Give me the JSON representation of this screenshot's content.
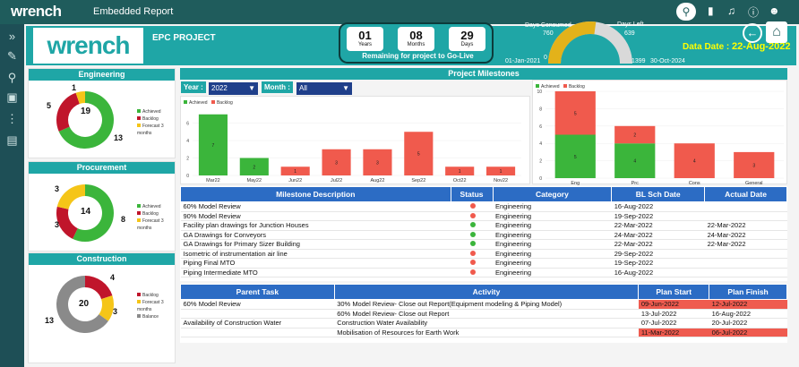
{
  "topbar": {
    "brand": "wrench",
    "title": "Embedded Report"
  },
  "header": {
    "logo": "wrench",
    "project_title": "EPC PROJECT",
    "counters": [
      {
        "value": "01",
        "unit": "Years"
      },
      {
        "value": "08",
        "unit": "Months"
      },
      {
        "value": "29",
        "unit": "Days"
      }
    ],
    "counter_caption": "Remaining for project to Go-Live",
    "gauge": {
      "consumed_label": "Days Consumed",
      "consumed_value": "760",
      "left_label": "Days Left",
      "left_value": "639",
      "min": "0",
      "max": "1399",
      "start_date": "01-Jan-2021",
      "end_date": "30-Oct-2024",
      "fraction_consumed": 0.543
    },
    "date_label": "Data Date :",
    "date_value": "22-Aug-2022"
  },
  "colors": {
    "teal": "#1fa6a6",
    "green": "#3bb53b",
    "red": "#f05a4d",
    "yellow": "#f5c518",
    "darkred": "#c0152b",
    "grey": "#8a8a8a"
  },
  "engineering": {
    "title": "Engineering",
    "total": "19",
    "labels": [
      "1",
      "5",
      "13"
    ],
    "legend": [
      "Achieved",
      "Backlog",
      "Forecast 3 months"
    ],
    "values": [
      13,
      5,
      1
    ]
  },
  "procurement": {
    "title": "Procurement",
    "total": "14",
    "labels": [
      "3",
      "3",
      "8"
    ],
    "legend": [
      "Achieved",
      "Backlog",
      "Forecast 3 months"
    ],
    "values": [
      8,
      3,
      3
    ]
  },
  "construction": {
    "title": "Construction",
    "total": "20",
    "labels": [
      "4",
      "3",
      "13"
    ],
    "legend": [
      "Backlog",
      "Forecast 3 months",
      "Balance"
    ],
    "values": [
      4,
      3,
      13
    ]
  },
  "milestones": {
    "title": "Project Milestones",
    "year_label": "Year :",
    "year_value": "2022",
    "month_label": "Month :",
    "month_value": "All",
    "legend": [
      "Achieved",
      "Backlog"
    ]
  },
  "chart_data": [
    {
      "type": "bar",
      "stacked": true,
      "categories": [
        "Mar22",
        "May22",
        "Jun22",
        "Jul22",
        "Aug22",
        "Sep22",
        "Oct22",
        "Nov22"
      ],
      "series": [
        {
          "name": "Achieved",
          "values": [
            7,
            2,
            0,
            0,
            0,
            0,
            0,
            0
          ]
        },
        {
          "name": "Backlog",
          "values": [
            0,
            0,
            1,
            3,
            3,
            5,
            1,
            1
          ]
        }
      ],
      "ylim": [
        0,
        8
      ],
      "yticks": [
        "0",
        "2",
        "4",
        "6"
      ]
    },
    {
      "type": "bar",
      "stacked": true,
      "categories": [
        "Eng",
        "Prc",
        "Cons",
        "General"
      ],
      "series": [
        {
          "name": "Achieved",
          "values": [
            5,
            4,
            0,
            0
          ]
        },
        {
          "name": "Backlog",
          "values": [
            5,
            2,
            4,
            3
          ]
        }
      ],
      "data_labels": [
        "5",
        "5",
        "4",
        "2",
        "4",
        "3"
      ],
      "ylim": [
        0,
        10
      ],
      "yticks": [
        "0",
        "2",
        "4",
        "6",
        "8",
        "10"
      ]
    }
  ],
  "milestone_table": {
    "columns": [
      "Milestone Description",
      "Status",
      "Category",
      "BL Sch Date",
      "Actual Date"
    ],
    "rows": [
      {
        "desc": "60% Model Review",
        "status": "red",
        "category": "Engineering",
        "bl": "16-Aug-2022",
        "actual": ""
      },
      {
        "desc": "90% Model Review",
        "status": "red",
        "category": "Engineering",
        "bl": "19-Sep-2022",
        "actual": ""
      },
      {
        "desc": "Facility plan drawings for Junction Houses",
        "status": "green",
        "category": "Engineering",
        "bl": "22-Mar-2022",
        "actual": "22-Mar-2022"
      },
      {
        "desc": "GA Drawings for Conveyors",
        "status": "green",
        "category": "Engineering",
        "bl": "24-Mar-2022",
        "actual": "24-Mar-2022"
      },
      {
        "desc": "GA Drawings for Primary Sizer Building",
        "status": "green",
        "category": "Engineering",
        "bl": "22-Mar-2022",
        "actual": "22-Mar-2022"
      },
      {
        "desc": "Isometric of instrumentation air line",
        "status": "red",
        "category": "Engineering",
        "bl": "29-Sep-2022",
        "actual": ""
      },
      {
        "desc": "Piping Final MTO",
        "status": "red",
        "category": "Engineering",
        "bl": "19-Sep-2022",
        "actual": ""
      },
      {
        "desc": "Piping Intermediate MTO",
        "status": "red",
        "category": "Engineering",
        "bl": "16-Aug-2022",
        "actual": ""
      }
    ]
  },
  "task_table": {
    "columns": [
      "Parent Task",
      "Activity",
      "Plan Start",
      "Plan Finish"
    ],
    "rows": [
      {
        "parent": "60% Model Review",
        "activity": "30% Model Review- Close out Report(Equipment modeling & Piping Model)",
        "start": "09-Jun-2022",
        "finish": "12-Jul-2022",
        "start_red": true,
        "finish_red": true
      },
      {
        "parent": "",
        "activity": "60% Model Review- Close out Report",
        "start": "13-Jul-2022",
        "finish": "16-Aug-2022",
        "start_red": false,
        "finish_red": false
      },
      {
        "parent": "Availability of Construction Water",
        "activity": "Construction Water Availability",
        "start": "07-Jul-2022",
        "finish": "20-Jul-2022",
        "start_red": false,
        "finish_red": false
      },
      {
        "parent": "",
        "activity": "Mobilisation of Resources for Earth Work",
        "start": "11-Mar-2022",
        "finish": "06-Jul-2022",
        "start_red": true,
        "finish_red": true
      }
    ]
  }
}
